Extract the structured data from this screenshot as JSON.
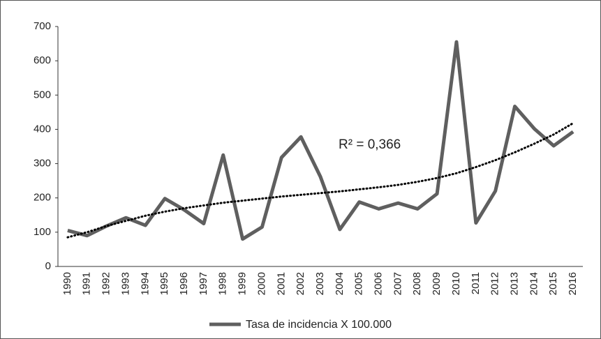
{
  "chart_data": {
    "type": "line",
    "categories": [
      "1990",
      "1991",
      "1992",
      "1993",
      "1994",
      "1995",
      "1996",
      "1997",
      "1998",
      "1999",
      "2000",
      "2001",
      "2002",
      "2003",
      "2004",
      "2005",
      "2006",
      "2007",
      "2008",
      "2009",
      "2010",
      "2011",
      "2012",
      "2013",
      "2014",
      "2015",
      "2016"
    ],
    "series": [
      {
        "name": "Tasa de incidencia X 100.000",
        "color": "#5f5f5f",
        "values": [
          105,
          90,
          118,
          142,
          120,
          198,
          165,
          125,
          325,
          80,
          115,
          318,
          378,
          262,
          108,
          188,
          168,
          185,
          168,
          212,
          655,
          127,
          220,
          467,
          402,
          352,
          393
        ]
      }
    ],
    "trendline": {
      "color": "#000000",
      "values": [
        85,
        100,
        118,
        133,
        148,
        160,
        170,
        178,
        186,
        192,
        198,
        204,
        209,
        214,
        219,
        225,
        231,
        238,
        247,
        258,
        272,
        290,
        310,
        333,
        358,
        385,
        418
      ]
    },
    "annotation": "R² = 0,366",
    "ylim": [
      0,
      700
    ],
    "yticks": [
      0,
      100,
      200,
      300,
      400,
      500,
      600,
      700
    ],
    "legend": "bottom"
  }
}
